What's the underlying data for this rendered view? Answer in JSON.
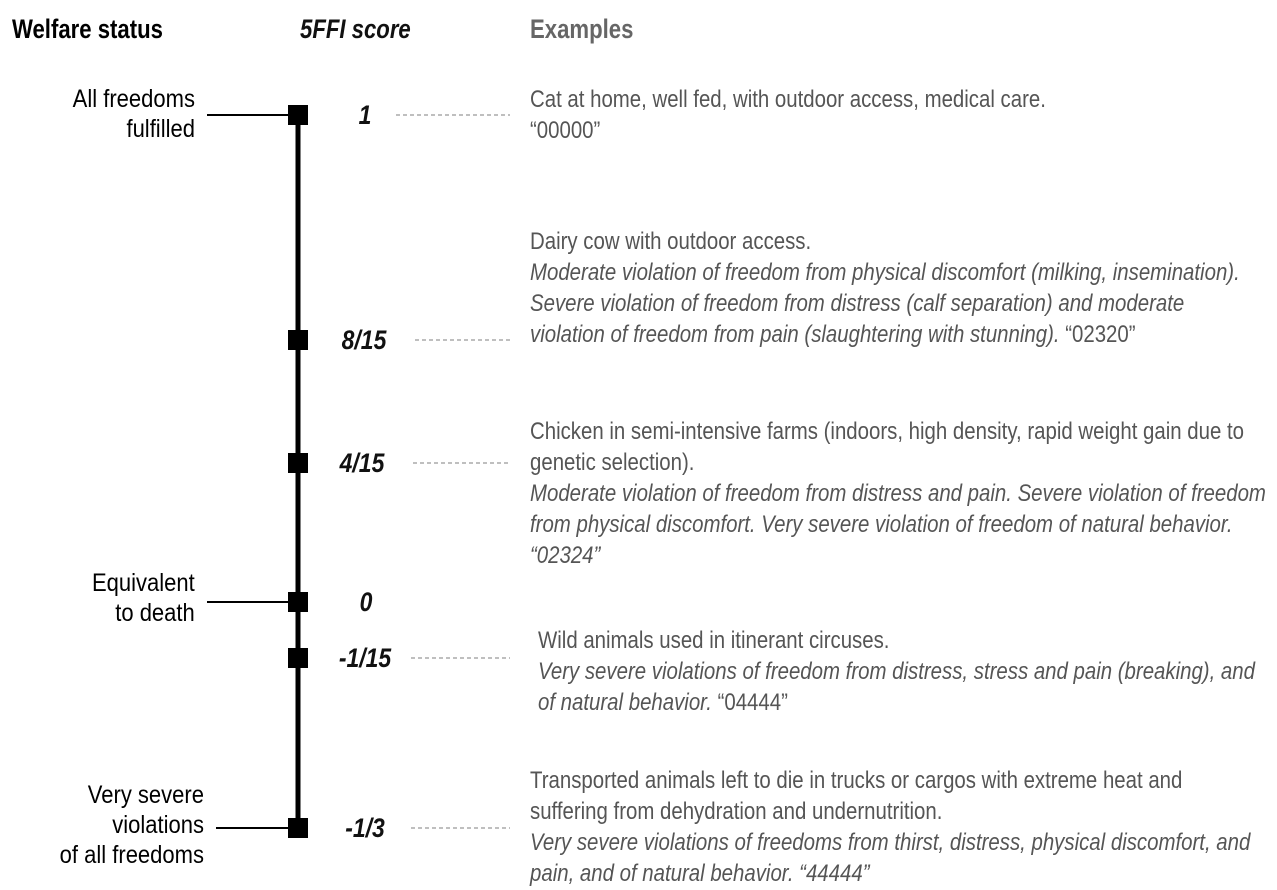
{
  "headers": {
    "status": "Welfare status",
    "score": "5FFI score",
    "examples": "Examples"
  },
  "scale": [
    {
      "score": "1",
      "status": [
        "All freedoms",
        "fulfilled"
      ]
    },
    {
      "score": "8/15"
    },
    {
      "score": "4/15"
    },
    {
      "score": "0",
      "status": [
        "Equivalent",
        "to death"
      ]
    },
    {
      "score": "-1/15"
    },
    {
      "score": "-1/3",
      "status": [
        "Very severe",
        "violations",
        "of all freedoms"
      ]
    }
  ],
  "examples": [
    {
      "title": "Cat at home, well fed, with outdoor access, medical care.",
      "code": "“00000”"
    },
    {
      "title": "Dairy cow with outdoor access.",
      "detail": "Moderate violation of freedom from physical discomfort (milking, insemination). Severe violation of freedom from distress (calf separation) and moderate violation of freedom from pain (slaughtering with stunning).",
      "code": "“02320”"
    },
    {
      "title": "Chicken in semi-intensive farms (indoors, high density, rapid weight gain due to genetic selection).",
      "detail": "Moderate violation of freedom from distress and pain. Severe violation of freedom from physical discomfort. Very severe violation of freedom of natural behavior.",
      "code": "“02324”"
    },
    {
      "title": "Wild animals used in itinerant circuses.",
      "detail": "Very severe violations of freedom from distress, stress and pain (breaking), and of natural behavior.",
      "code": "“04444”"
    },
    {
      "title": "Transported animals left to die in trucks or cargos with extreme heat and suffering from dehydration and undernutrition.",
      "detail": "Very severe violations of freedoms from thirst,  distress, physical discomfort, and pain, and of natural behavior.",
      "code": "“44444”"
    }
  ]
}
